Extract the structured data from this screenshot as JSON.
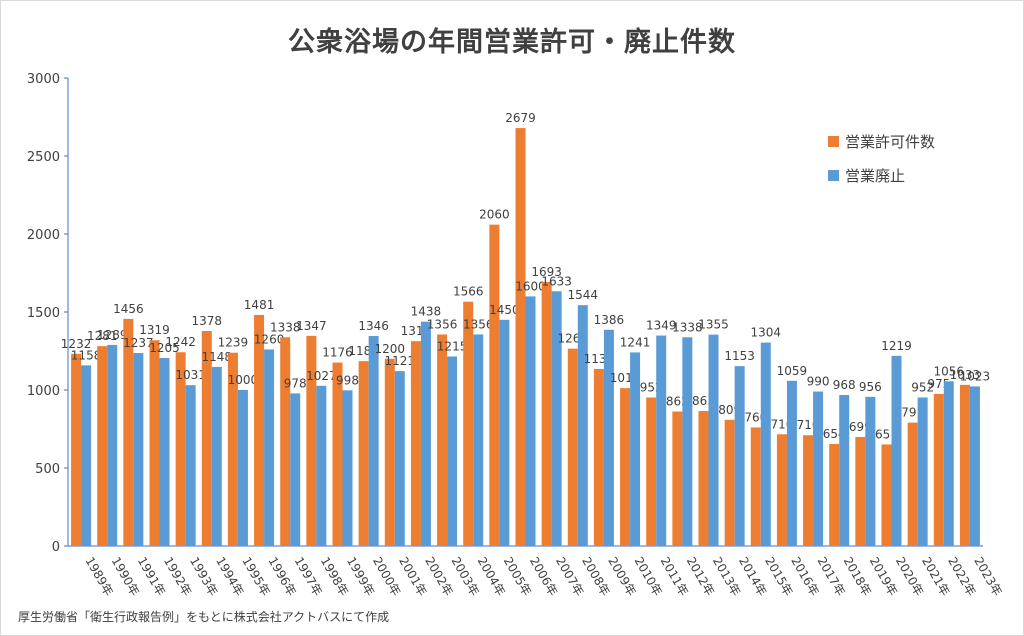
{
  "title": "公衆浴場の年間営業許可・廃止件数",
  "source_note": "厚生労働省「衛生行政報告例」をもとに株式会社アクトバスにて作成",
  "chart_data": {
    "type": "bar",
    "title": "公衆浴場の年間営業許可・廃止件数",
    "categories": [
      "1989年",
      "1990年",
      "1991年",
      "1992年",
      "1993年",
      "1994年",
      "1995年",
      "1996年",
      "1997年",
      "1998年",
      "1999年",
      "2000年",
      "2001年",
      "2002年",
      "2003年",
      "2004年",
      "2005年",
      "2006年",
      "2007年",
      "2008年",
      "2009年",
      "2010年",
      "2011年",
      "2012年",
      "2013年",
      "2014年",
      "2015年",
      "2016年",
      "2017年",
      "2018年",
      "2019年",
      "2020年",
      "2021年",
      "2022年",
      "2023年"
    ],
    "series": [
      {
        "name": "営業許可件数",
        "color": "#ed7d31",
        "values": [
          1232,
          1281,
          1456,
          1319,
          1242,
          1378,
          1239,
          1481,
          1338,
          1347,
          1176,
          1185,
          1200,
          1313,
          1356,
          1566,
          2060,
          2679,
          1693,
          1265,
          1135,
          1012,
          952,
          862,
          865,
          809,
          760,
          716,
          710,
          654,
          699,
          651,
          791,
          975,
          1033
        ]
      },
      {
        "name": "営業廃止",
        "color": "#5b9bd5",
        "values": [
          1158,
          1289,
          1237,
          1205,
          1031,
          1148,
          1000,
          1260,
          978,
          1027,
          998,
          1346,
          1121,
          1438,
          1215,
          1356,
          1450,
          1600,
          1633,
          1544,
          1386,
          1241,
          1349,
          1338,
          1355,
          1153,
          1304,
          1059,
          990,
          968,
          956,
          1219,
          952,
          1056,
          1023
        ]
      }
    ],
    "ylim": [
      0,
      3000
    ],
    "yticks": [
      0,
      500,
      1000,
      1500,
      2000,
      2500,
      3000
    ],
    "grid": false,
    "legend_position": "top-right"
  }
}
